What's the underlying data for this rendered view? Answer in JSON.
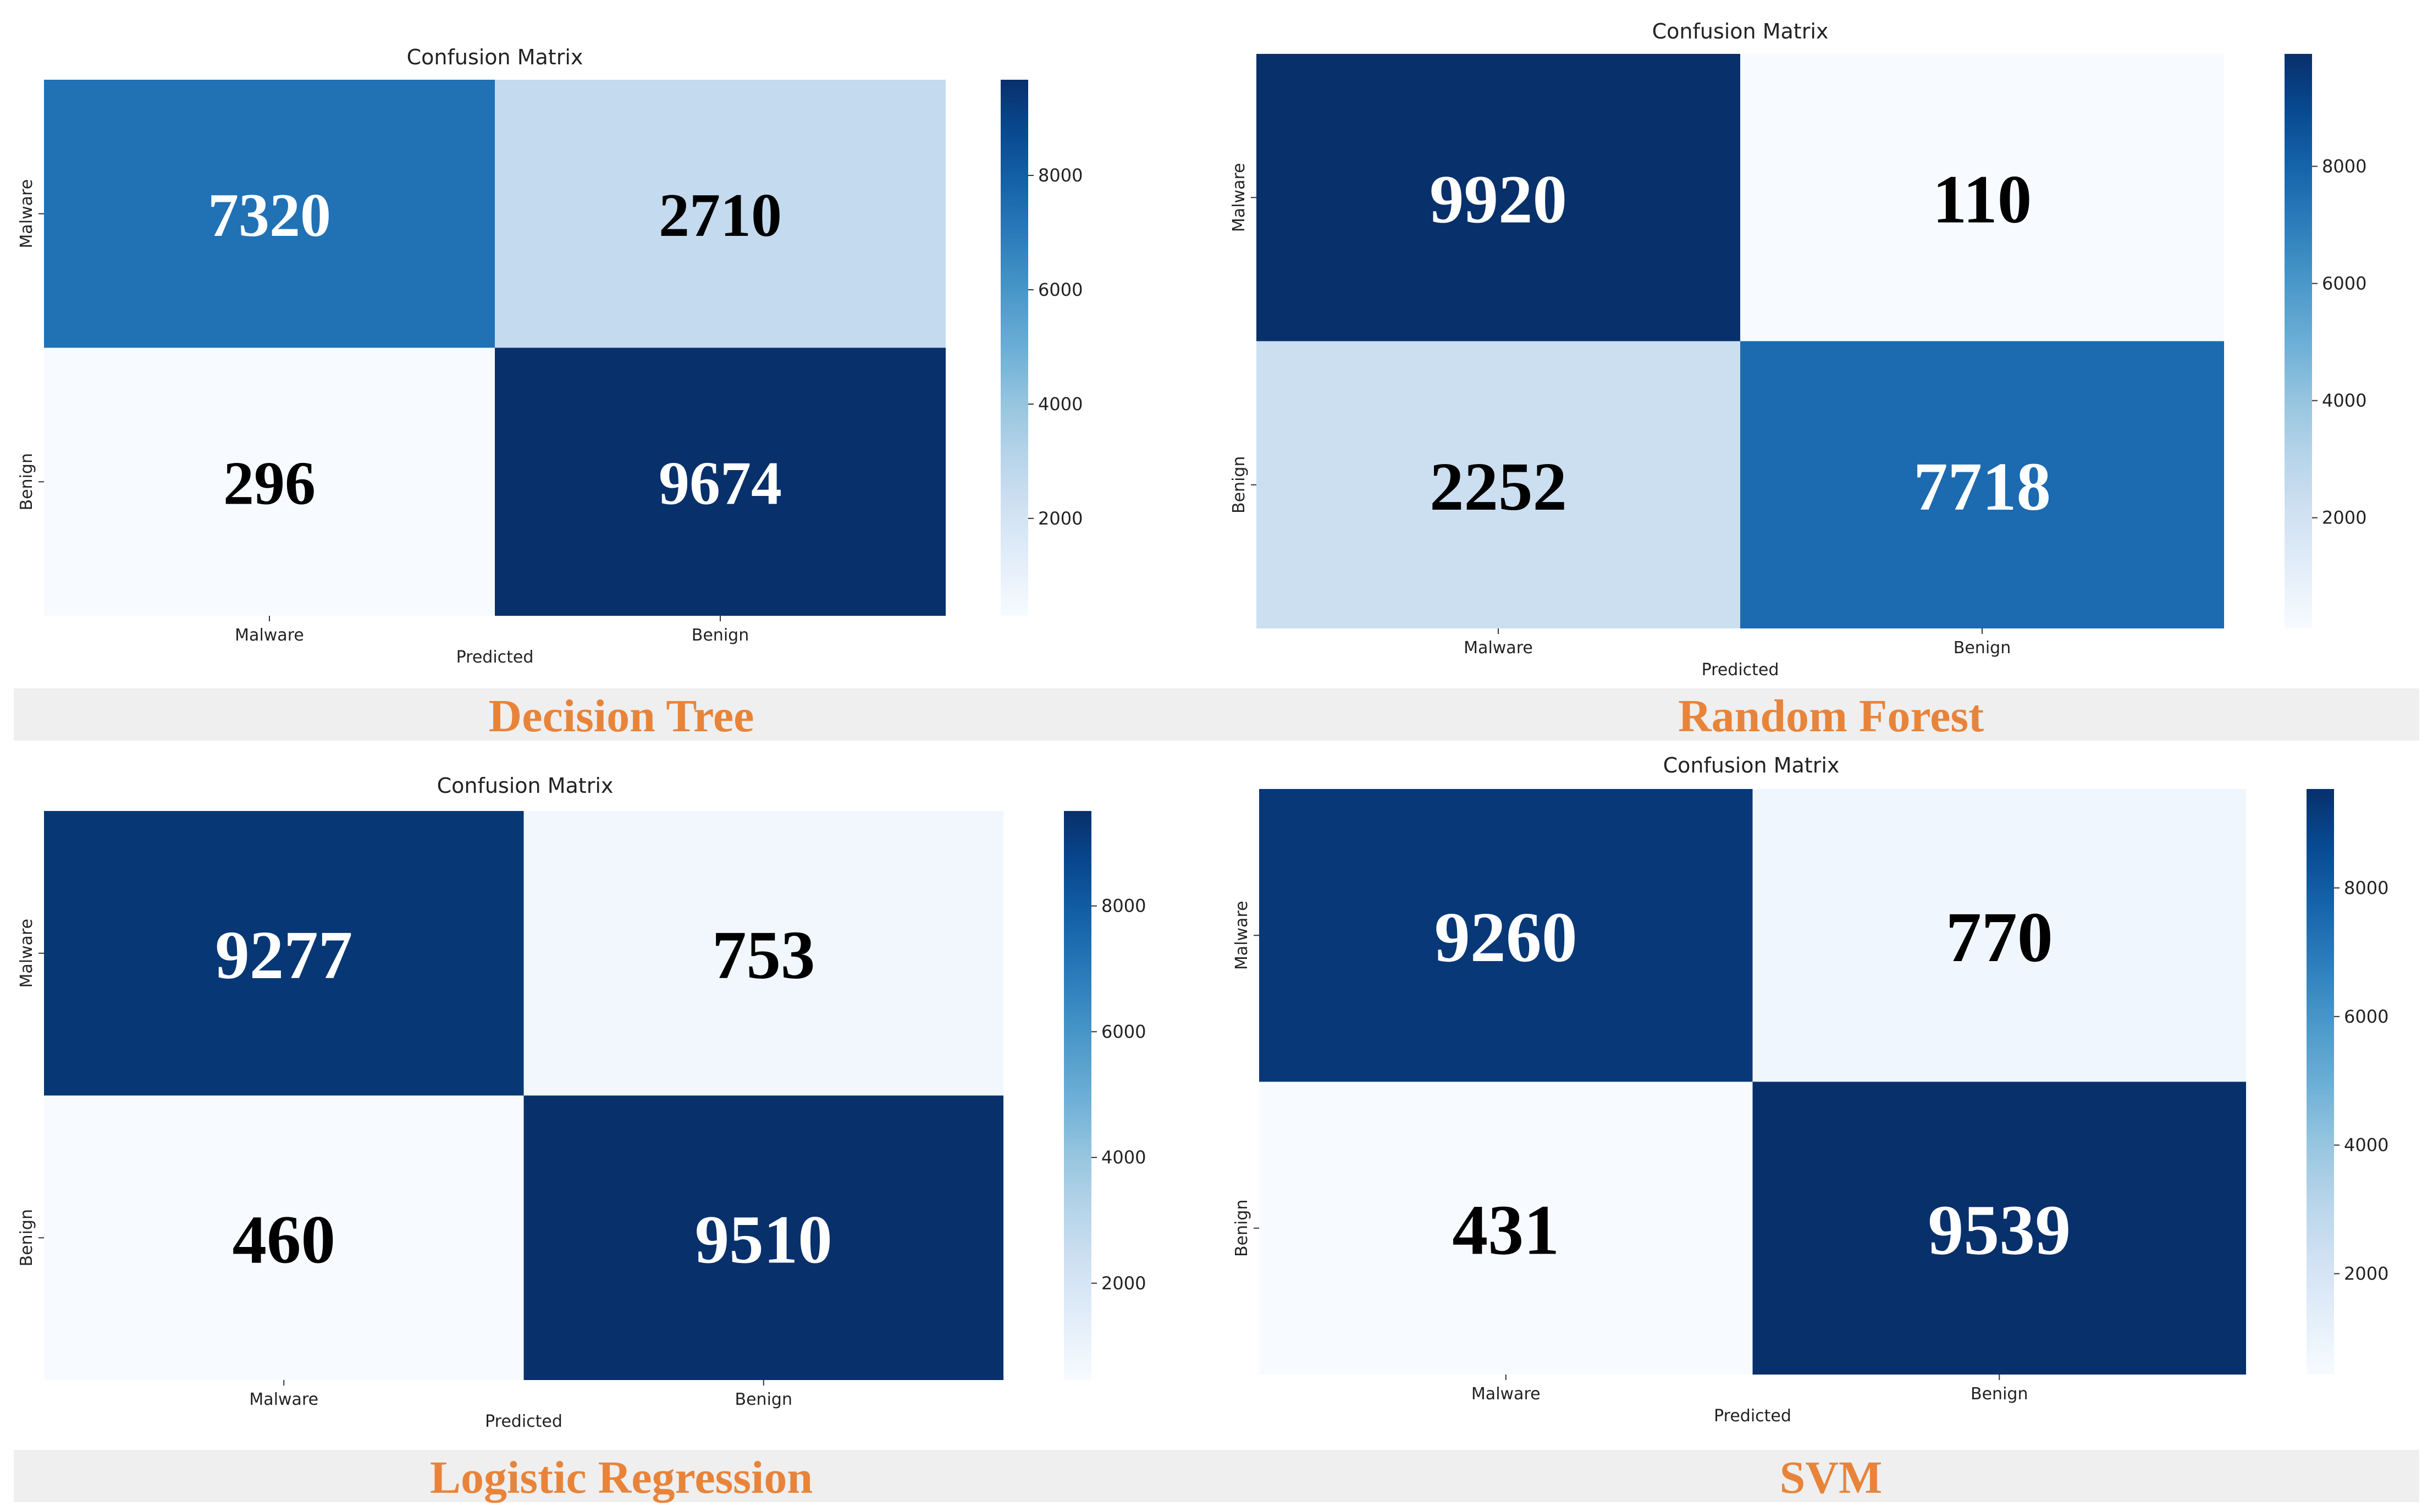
{
  "chart_data": [
    {
      "type": "heatmap",
      "title": "Confusion Matrix",
      "caption": "Decision Tree",
      "xlabel": "Predicted",
      "ylabel": "",
      "row_labels": [
        "Malware",
        "Benign"
      ],
      "col_labels": [
        "Malware",
        "Benign"
      ],
      "values": [
        [
          7320,
          2710
        ],
        [
          296,
          9674
        ]
      ],
      "colorbar": {
        "ticks": [
          2000,
          4000,
          6000,
          8000
        ],
        "range": [
          296,
          9674
        ]
      },
      "colormap": "Blues"
    },
    {
      "type": "heatmap",
      "title": "Confusion Matrix",
      "caption": "Random Forest",
      "xlabel": "Predicted",
      "ylabel": "",
      "row_labels": [
        "Malware",
        "Benign"
      ],
      "col_labels": [
        "Malware",
        "Benign"
      ],
      "values": [
        [
          9920,
          110
        ],
        [
          2252,
          7718
        ]
      ],
      "colorbar": {
        "ticks": [
          2000,
          4000,
          6000,
          8000
        ],
        "range": [
          110,
          9920
        ]
      },
      "colormap": "Blues"
    },
    {
      "type": "heatmap",
      "title": "Confusion Matrix",
      "caption": "Logistic Regression",
      "xlabel": "Predicted",
      "ylabel": "",
      "row_labels": [
        "Malware",
        "Benign"
      ],
      "col_labels": [
        "Malware",
        "Benign"
      ],
      "values": [
        [
          9277,
          753
        ],
        [
          460,
          9510
        ]
      ],
      "colorbar": {
        "ticks": [
          2000,
          4000,
          6000,
          8000
        ],
        "range": [
          460,
          9510
        ]
      },
      "colormap": "Blues"
    },
    {
      "type": "heatmap",
      "title": "Confusion Matrix",
      "caption": "SVM",
      "xlabel": "Predicted",
      "ylabel": "",
      "row_labels": [
        "Malware",
        "Benign"
      ],
      "col_labels": [
        "Malware",
        "Benign"
      ],
      "values": [
        [
          9260,
          770
        ],
        [
          431,
          9539
        ]
      ],
      "colorbar": {
        "ticks": [
          2000,
          4000,
          6000,
          8000
        ],
        "range": [
          431,
          9539
        ]
      },
      "colormap": "Blues"
    }
  ],
  "colors": {
    "caption_text": "#e8843a",
    "caption_band": "#efefef",
    "colormap_light": "#f7fbff",
    "colormap_dark": "#08306b"
  }
}
